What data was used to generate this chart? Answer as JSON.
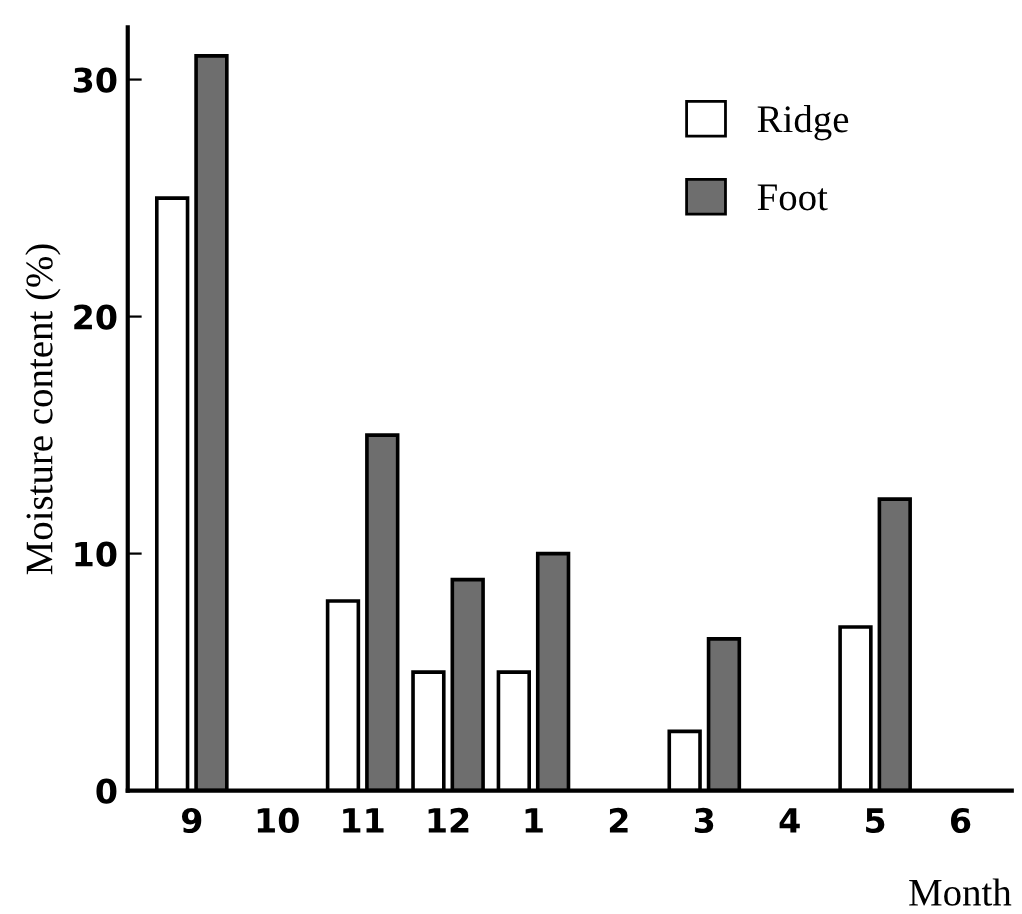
{
  "chart_data": {
    "type": "bar",
    "xlabel": "Month",
    "ylabel": "Moisture content (%)",
    "categories": [
      "9",
      "10",
      "11",
      "12",
      "1",
      "2",
      "3",
      "4",
      "5",
      "6"
    ],
    "series": [
      {
        "name": "Ridge",
        "color": "#ffffff",
        "values": [
          25,
          null,
          8,
          5,
          5,
          null,
          2.5,
          null,
          6.9,
          null
        ]
      },
      {
        "name": "Foot",
        "color": "#6e6e6e",
        "values": [
          31,
          null,
          15,
          8.9,
          10,
          null,
          6.4,
          null,
          12.3,
          null
        ]
      }
    ],
    "ylim": [
      0,
      32.2
    ],
    "yticks": [
      0,
      10,
      20,
      30
    ],
    "grid": false,
    "legend": "top right"
  }
}
